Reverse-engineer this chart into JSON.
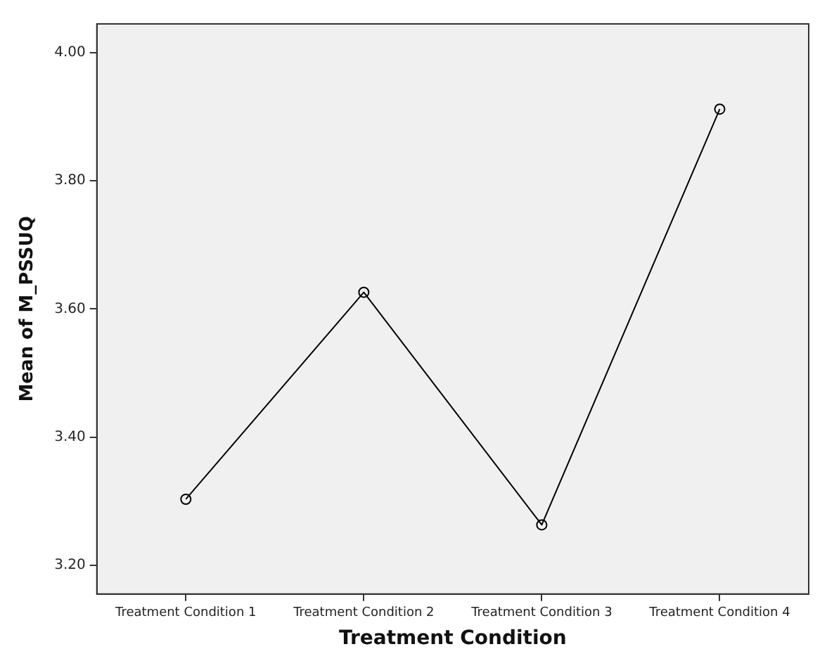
{
  "chart_data": {
    "type": "line",
    "xlabel": "Treatment Condition",
    "ylabel": "Mean of M_PSSUQ",
    "categories": [
      "Treatment Condition 1",
      "Treatment Condition 2",
      "Treatment Condition 3",
      "Treatment Condition 4"
    ],
    "series": [
      {
        "color": "#000000",
        "values": [
          3.303,
          3.626,
          3.263,
          3.912
        ]
      }
    ],
    "ylim": [
      3.155,
      4.045
    ],
    "yticks": [
      {
        "value": 3.2,
        "label": "3.20"
      },
      {
        "value": 3.4,
        "label": "3.40"
      },
      {
        "value": 3.6,
        "label": "3.60"
      },
      {
        "value": 3.8,
        "label": "3.80"
      },
      {
        "value": 4,
        "label": "4.00"
      }
    ],
    "grid": false,
    "legend": false,
    "marker": "circle",
    "line_style": "solid"
  }
}
